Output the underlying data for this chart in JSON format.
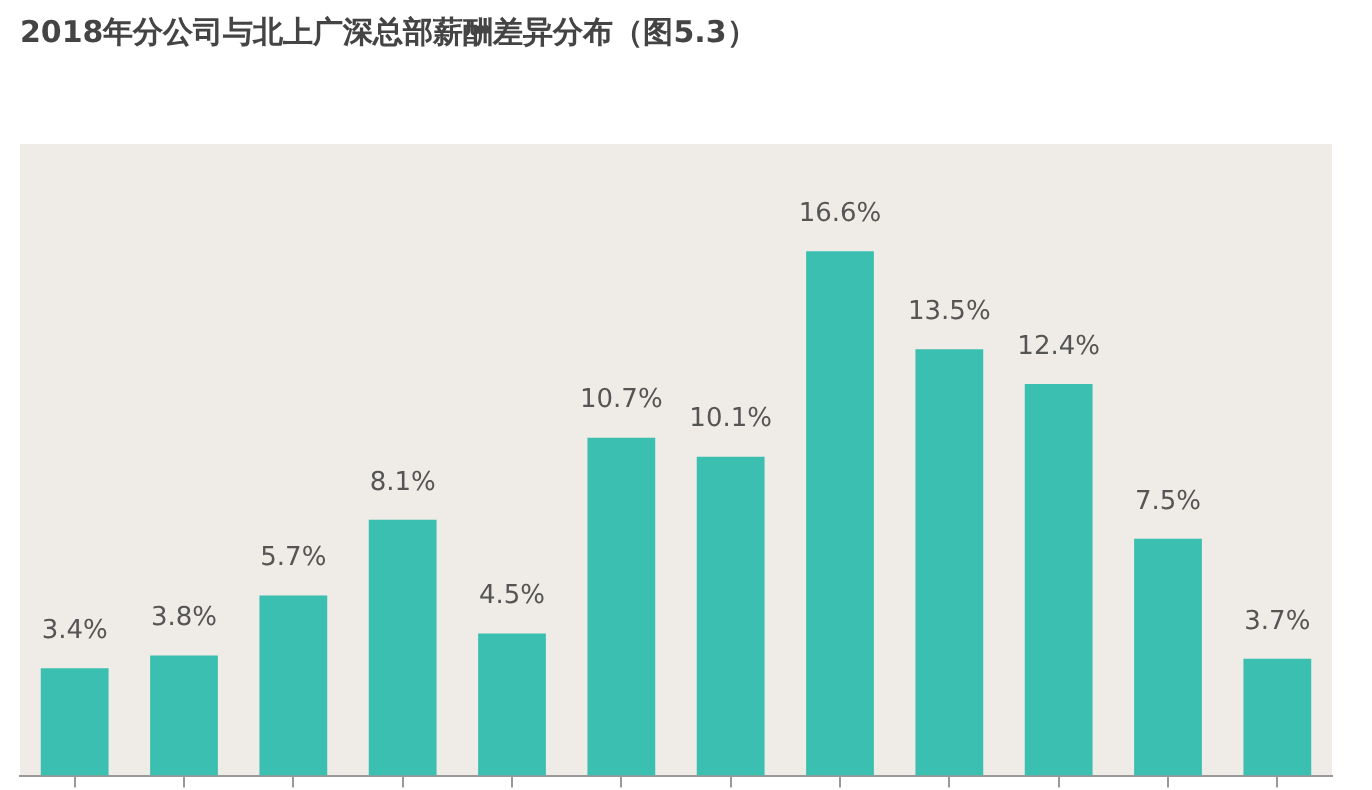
{
  "chart_data": {
    "type": "bar",
    "title": "2018年分公司与北上广深总部薪酬差异分布（图5.3）",
    "categories": [
      null,
      null,
      null,
      null,
      null,
      null,
      null,
      null,
      null,
      null,
      null,
      null
    ],
    "values": [
      3.4,
      3.8,
      5.7,
      8.1,
      4.5,
      10.7,
      10.1,
      16.6,
      13.5,
      12.4,
      7.5,
      3.7
    ],
    "value_labels": [
      "3.4%",
      "3.8%",
      "5.7%",
      "8.1%",
      "4.5%",
      "10.7%",
      "10.1%",
      "16.6%",
      "13.5%",
      "12.4%",
      "7.5%",
      "3.7%"
    ],
    "color": "#3bbfb0",
    "grid": false,
    "legend": false
  }
}
